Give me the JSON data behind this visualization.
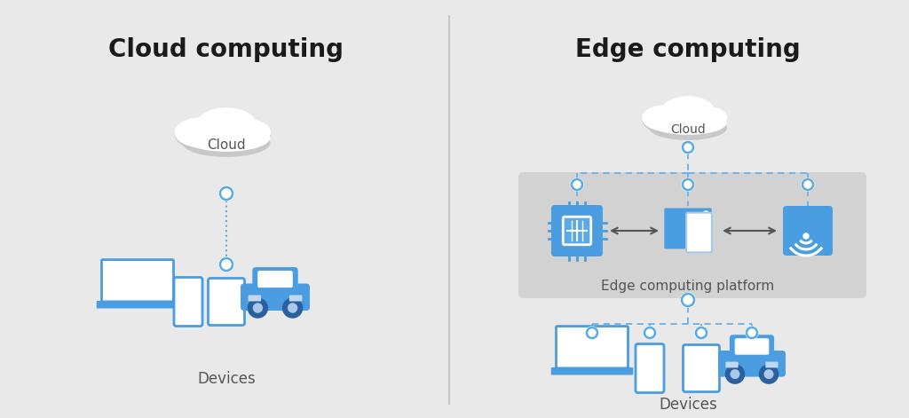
{
  "bg_color": "#e9e9e9",
  "title_left": "Cloud computing",
  "title_right": "Edge computing",
  "title_fontsize": 20,
  "title_fontweight": "bold",
  "title_color": "#1a1a1a",
  "label_color": "#555555",
  "label_fontsize": 12,
  "cloud_label": "Cloud",
  "devices_label": "Devices",
  "edge_platform_label": "Edge computing platform",
  "blue_main": "#4a9de0",
  "blue_dark": "#2b7fc4",
  "blue_light": "#a0c8f0",
  "blue_dashed": "#6ab0e8",
  "dot_color": "#5aace0",
  "platform_bg": "#d4d4d4",
  "divider_color": "#c0c0c0"
}
